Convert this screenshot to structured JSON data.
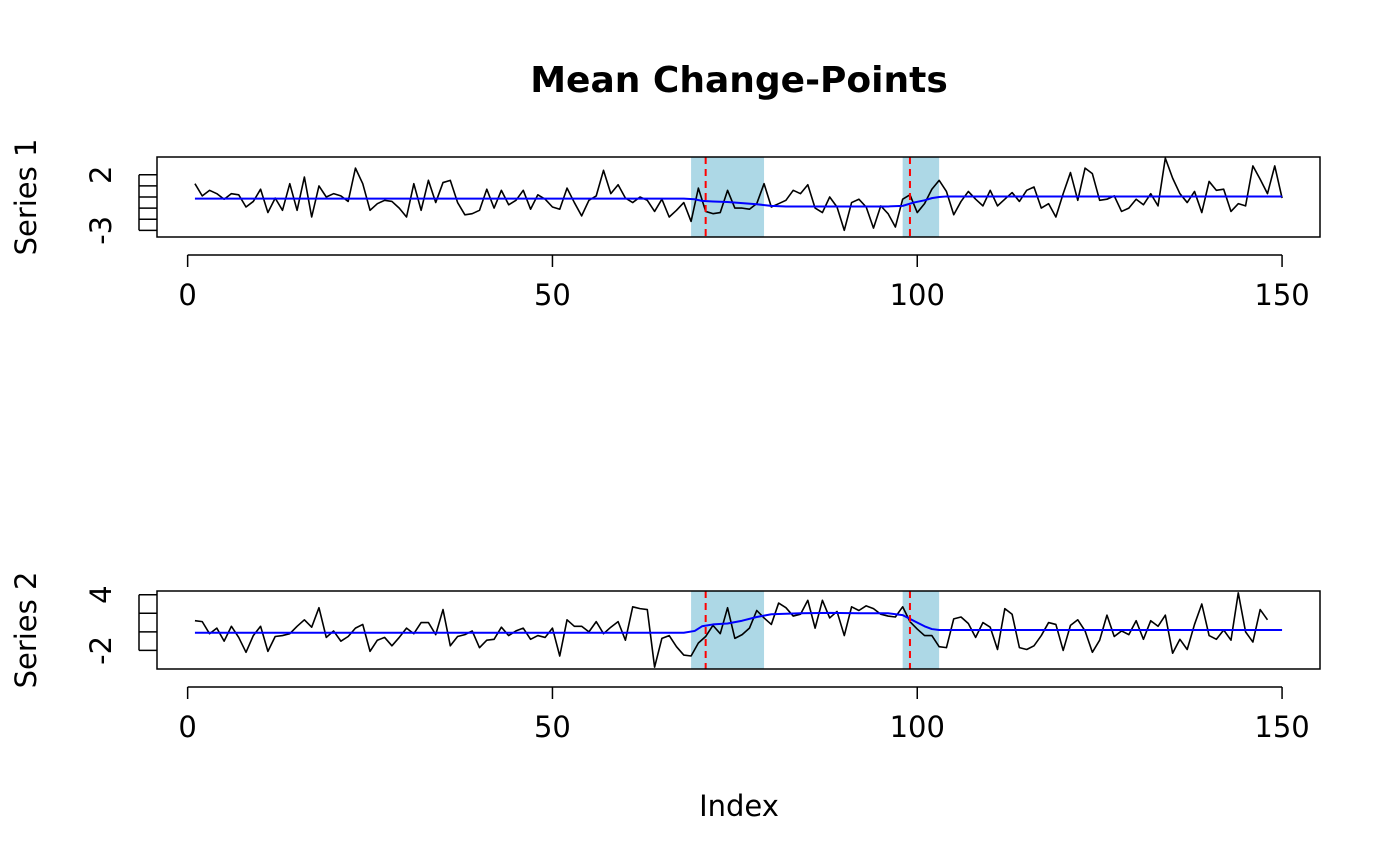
{
  "figure": {
    "title": "Mean Change-Points",
    "xlabel": "Index"
  },
  "colors": {
    "data_line": "#000000",
    "fit_line": "#0000ff",
    "changepoint": "#ff0000",
    "interval": "#add8e6",
    "frame": "#000000"
  },
  "chart_data": [
    {
      "type": "line",
      "ylabel": "Series 1",
      "xlim": [
        -4.2,
        155.2
      ],
      "ylim": [
        -3.6,
        3.6
      ],
      "xticks": [
        0,
        50,
        100,
        150
      ],
      "yticks": [
        -3,
        -2,
        -1,
        0,
        1,
        2
      ],
      "ytick_labels": [
        {
          "value": -3,
          "label": "-3"
        },
        {
          "value": 2,
          "label": "2"
        }
      ],
      "changepoints": [
        71,
        99
      ],
      "intervals": [
        [
          69,
          79
        ],
        [
          98,
          103
        ]
      ],
      "series": [
        {
          "name": "",
          "style": "data",
          "x_start": 1,
          "values": [
            1.2,
            0.1,
            0.6,
            0.3,
            -0.2,
            0.3,
            0.2,
            -0.9,
            -0.4,
            0.7,
            -1.4,
            -0.1,
            -1.2,
            1.2,
            -1.2,
            1.8,
            -1.8,
            1,
            0,
            0.3,
            0.1,
            -0.4,
            2.6,
            1.2,
            -1.2,
            -0.6,
            -0.3,
            -0.4,
            -1,
            -1.8,
            1.2,
            -1.2,
            1.5,
            -0.5,
            1.3,
            1.5,
            -0.5,
            -1.6,
            -1.5,
            -1.2,
            0.7,
            -1,
            0.6,
            -0.7,
            -0.3,
            0.6,
            -1.1,
            0.2,
            -0.2,
            -0.9,
            -1.1,
            0.8,
            -0.5,
            -1.7,
            -0.3,
            0.1,
            2.4,
            0.3,
            1.1,
            -0.1,
            -0.5,
            0,
            -0.3,
            -1.3,
            -0.2,
            -1.8,
            -1.2,
            -0.5,
            -2.2,
            0.8,
            -1.3,
            -1.5,
            -1.4,
            0.6,
            -1,
            -1,
            -1.1,
            -0.6,
            1.2,
            -0.9,
            -0.6,
            -0.3,
            0.6,
            0.3,
            1.1,
            -1,
            -1.4,
            0,
            -0.9,
            -3,
            -0.5,
            -0.2,
            -0.9,
            -2.8,
            -0.8,
            -1.5,
            -2.7,
            -0.2,
            0.2,
            -1.4,
            -0.6,
            0.7,
            1.5,
            0.5,
            -1.6,
            -0.4,
            0.5,
            -0.2,
            -0.8,
            0.6,
            -0.8,
            -0.2,
            0.4,
            -0.4,
            0.6,
            0.9,
            -1,
            -0.6,
            -1.8,
            0.3,
            2.2,
            -0.3,
            2.6,
            2.1,
            -0.3,
            -0.2,
            0.1,
            -1.3,
            -1,
            -0.2,
            -0.7,
            0.3,
            -0.8,
            3.5,
            1.7,
            0.3,
            -0.5,
            0.5,
            -1.4,
            1.4,
            0.6,
            0.7,
            -1.3,
            -0.6,
            -0.8,
            2.8,
            1.6,
            0.3,
            2.8,
            -0.1
          ]
        },
        {
          "name": "",
          "style": "fit",
          "x": [
            1,
            68,
            69.5,
            70.5,
            72,
            74,
            76,
            78,
            80,
            82,
            84,
            86,
            88,
            90,
            92,
            94,
            96,
            98,
            99.5,
            101,
            102,
            103,
            104,
            150
          ],
          "values": [
            -0.15,
            -0.15,
            -0.2,
            -0.35,
            -0.4,
            -0.45,
            -0.55,
            -0.65,
            -0.8,
            -0.85,
            -0.85,
            -0.85,
            -0.85,
            -0.85,
            -0.85,
            -0.85,
            -0.85,
            -0.8,
            -0.5,
            -0.3,
            -0.1,
            0,
            0.05,
            0.05
          ]
        }
      ]
    },
    {
      "type": "line",
      "ylabel": "Series 2",
      "xlim": [
        -4.2,
        155.2
      ],
      "ylim": [
        -4.0,
        4.4
      ],
      "xticks": [
        0,
        50,
        100,
        150
      ],
      "yticks": [
        -2,
        0,
        2,
        4
      ],
      "ytick_labels": [
        {
          "value": -2,
          "label": "-2"
        },
        {
          "value": 4,
          "label": "4"
        }
      ],
      "changepoints": [
        71,
        99
      ],
      "intervals": [
        [
          69,
          79
        ],
        [
          98,
          103
        ]
      ],
      "series": [
        {
          "name": "",
          "style": "data",
          "x_start": 1,
          "values": [
            1.2,
            1.1,
            -0.2,
            0.4,
            -1,
            0.6,
            -0.6,
            -2.2,
            -0.4,
            0.6,
            -2.1,
            -0.5,
            -0.4,
            -0.2,
            0.6,
            1.3,
            0.5,
            2.6,
            -0.6,
            0.1,
            -1,
            -0.5,
            0.4,
            0.8,
            -2.1,
            -0.9,
            -0.6,
            -1.5,
            -0.6,
            0.4,
            -0.2,
            1,
            1,
            -0.3,
            2.4,
            -1.5,
            -0.5,
            -0.3,
            0.1,
            -1.7,
            -0.9,
            -0.8,
            0.5,
            -0.4,
            0.1,
            0.4,
            -0.8,
            -0.4,
            -0.6,
            0.4,
            -2.6,
            1.3,
            0.6,
            0.6,
            0,
            1.1,
            -0.2,
            0.5,
            1.1,
            -0.9,
            2.7,
            2.5,
            2.4,
            -3.8,
            -0.7,
            -0.4,
            -1.6,
            -2.5,
            -2.6,
            -1.2,
            -0.5,
            0.7,
            -0.2,
            2.6,
            -0.7,
            -0.3,
            0.4,
            2.3,
            1.5,
            0.8,
            3.1,
            2.6,
            1.7,
            1.9,
            3.4,
            0.4,
            3.4,
            1.5,
            2.2,
            -0.4,
            2.7,
            2.3,
            2.8,
            2.5,
            1.9,
            1.7,
            1.6,
            2.7,
            1.1,
            0.3,
            -0.4,
            -0.4,
            -1.6,
            -1.7,
            1.4,
            1.6,
            0.9,
            -0.6,
            1,
            0.5,
            -1.9,
            2.5,
            1.9,
            -1.7,
            -1.9,
            -1.5,
            -0.4,
            1,
            0.8,
            -2,
            0.7,
            1.3,
            0.1,
            -2.2,
            -0.9,
            1.8,
            -0.5,
            0.1,
            -0.3,
            1.2,
            -0.8,
            1.2,
            0.6,
            1.8,
            -2.3,
            -0.8,
            -1.9,
            0.8,
            3,
            -0.4,
            -0.8,
            0.2,
            -0.9,
            4.2,
            0,
            -1.1,
            2.4,
            1.3
          ]
        },
        {
          "name": "",
          "style": "fit",
          "x": [
            1,
            68,
            69.5,
            70.5,
            72,
            74,
            76,
            78,
            80,
            84,
            88,
            92,
            96,
            98,
            99.5,
            101,
            102,
            103,
            104,
            150
          ],
          "values": [
            -0.1,
            -0.1,
            0.1,
            0.6,
            0.8,
            0.9,
            1.2,
            1.6,
            1.9,
            2.0,
            2.05,
            2.0,
            2.0,
            1.8,
            1.2,
            0.6,
            0.3,
            0.2,
            0.2,
            0.2
          ]
        }
      ]
    }
  ]
}
